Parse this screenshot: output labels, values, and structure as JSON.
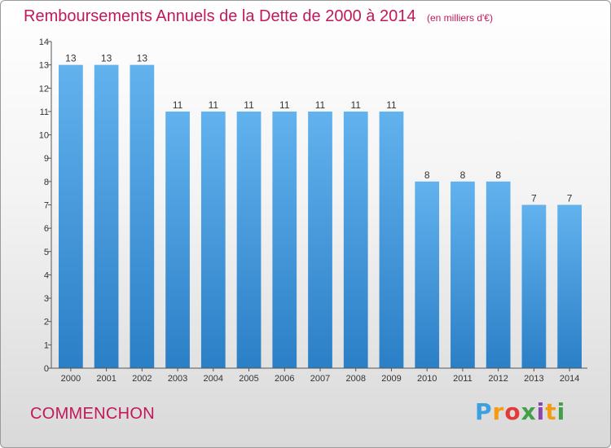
{
  "header": {
    "title": "Remboursements Annuels de la Dette de 2000 à 2014",
    "unit": "(en milliers d'€)"
  },
  "footer": {
    "city": "COMMENCHON",
    "logo": "Proxiti"
  },
  "colors": {
    "title": "#c2185b",
    "bar_top": "#62b2ee",
    "bar_bottom": "#2b7fc6",
    "axis": "#555555"
  },
  "chart_data": {
    "type": "bar",
    "title": "Remboursements Annuels de la Dette de 2000 à 2014",
    "subtitle": "(en milliers d'€)",
    "xlabel": "",
    "ylabel": "",
    "categories": [
      "2000",
      "2001",
      "2002",
      "2003",
      "2004",
      "2005",
      "2006",
      "2007",
      "2008",
      "2009",
      "2010",
      "2011",
      "2012",
      "2013",
      "2014"
    ],
    "values": [
      13,
      13,
      13,
      11,
      11,
      11,
      11,
      11,
      11,
      11,
      8,
      8,
      8,
      7,
      7
    ],
    "value_labels": [
      "13",
      "13",
      "13",
      "11",
      "11",
      "11",
      "11",
      "11",
      "11",
      "11",
      "8",
      "8",
      "8",
      "7",
      "7"
    ],
    "ylim": [
      0,
      14
    ],
    "yticks": [
      0,
      1,
      2,
      3,
      4,
      5,
      6,
      7,
      8,
      9,
      10,
      11,
      12,
      13,
      14
    ],
    "grid": false,
    "legend": "none"
  }
}
